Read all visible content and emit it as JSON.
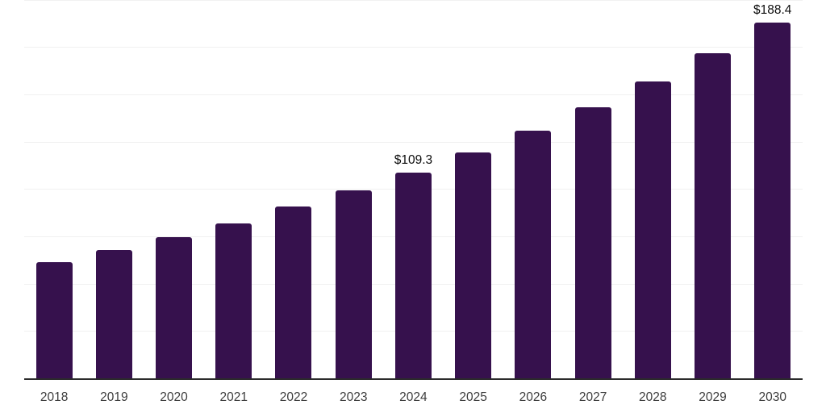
{
  "chart": {
    "background_color": "#ffffff",
    "bar_color": "#36114D",
    "axis_color": "#2b2b2b",
    "gridline_color": "#f1f1f1",
    "tick_label_color": "#3d3d3d",
    "value_label_color": "#0d0d0d"
  },
  "chart_data": {
    "type": "bar",
    "categories": [
      "2018",
      "2019",
      "2020",
      "2021",
      "2022",
      "2023",
      "2024",
      "2025",
      "2026",
      "2027",
      "2028",
      "2029",
      "2030"
    ],
    "values": [
      61.8,
      68.2,
      75.0,
      82.3,
      91.0,
      99.7,
      109.3,
      119.8,
      131.2,
      143.6,
      157.2,
      172.1,
      188.4
    ],
    "value_labels": {
      "2024": "$109.3",
      "2030": "$188.4"
    },
    "ylim": [
      0,
      200
    ],
    "gridline_step": 25,
    "grid": "horizontal",
    "legend": "none",
    "x_axis_line": true,
    "y_axis_labels": "none"
  }
}
